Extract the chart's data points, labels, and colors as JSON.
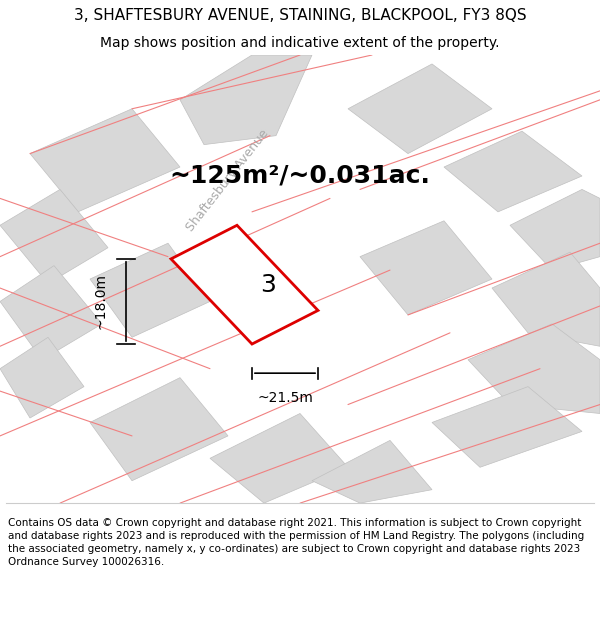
{
  "title_line1": "3, SHAFTESBURY AVENUE, STAINING, BLACKPOOL, FY3 8QS",
  "title_line2": "Map shows position and indicative extent of the property.",
  "area_label": "~125m²/~0.031ac.",
  "number_label": "3",
  "width_label": "~21.5m",
  "height_label": "~18.0m",
  "footer_text": "Contains OS data © Crown copyright and database right 2021. This information is subject to Crown copyright and database rights 2023 and is reproduced with the permission of HM Land Registry. The polygons (including the associated geometry, namely x, y co-ordinates) are subject to Crown copyright and database rights 2023 Ordnance Survey 100026316.",
  "bg_color": "#ffffff",
  "map_bg": "#f5f5f5",
  "road_color": "#ffffff",
  "building_fill": "#d8d8d8",
  "building_edge": "#c0c0c0",
  "pink_line_color": "#f08080",
  "red_outline_color": "#dd0000",
  "street_label": "Shaftesbury Avenue",
  "title_fontsize": 11,
  "subtitle_fontsize": 10,
  "area_fontsize": 18,
  "number_fontsize": 18,
  "dim_fontsize": 10,
  "footer_fontsize": 7.5
}
